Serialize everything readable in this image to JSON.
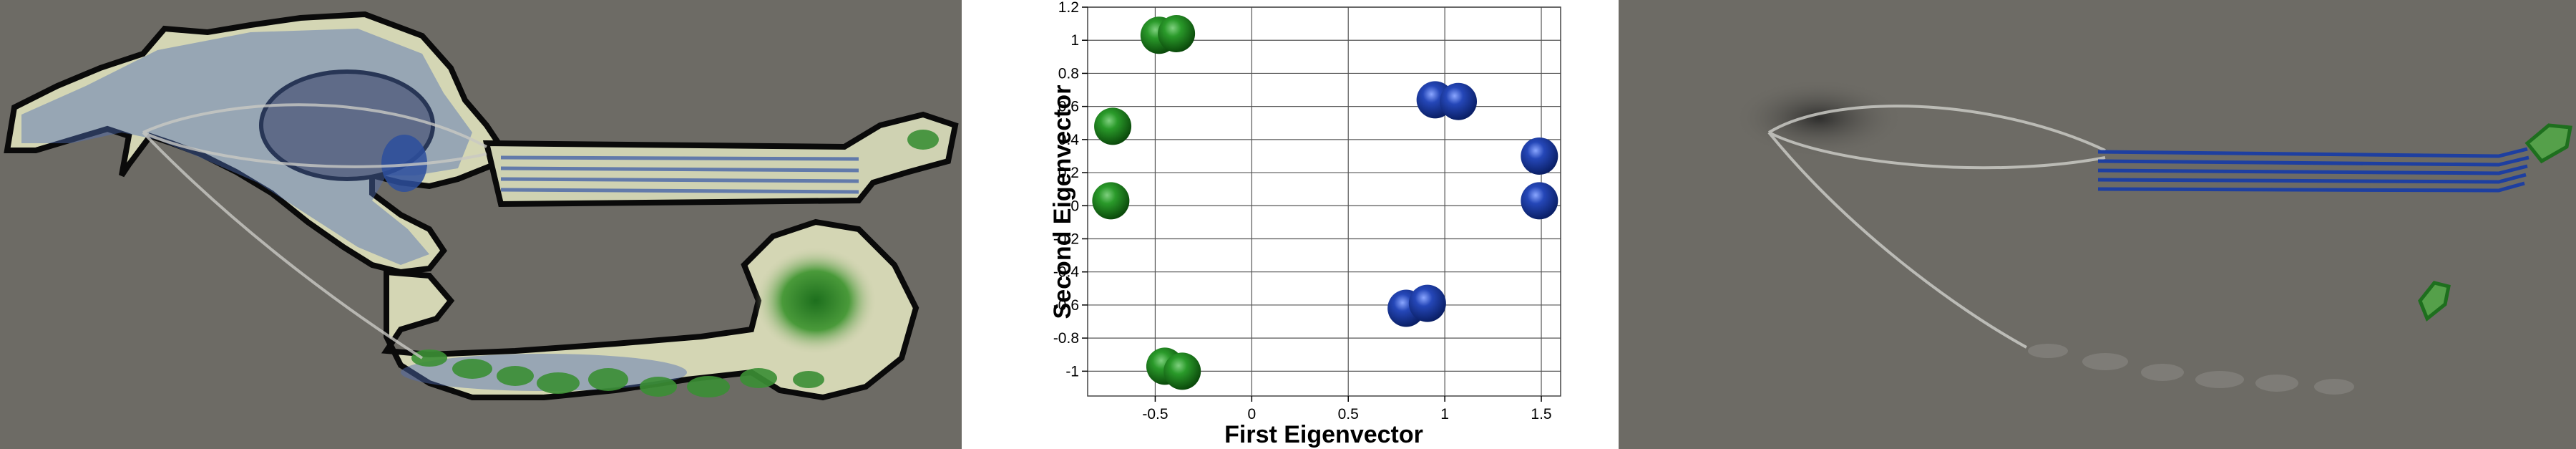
{
  "colors": {
    "viewport_bg": "#6d6b65",
    "region_fill": "#cfcfae",
    "region_outline": "#0a0a0a",
    "density_blue": "#3f5ea8",
    "density_green": "#2f8a2f",
    "node_green": "#1f8a1f",
    "node_blue": "#1f3f9f",
    "streamline": "#c9c9c4",
    "shadow": "#2a2a2a"
  },
  "chart_data": {
    "type": "scatter",
    "xlabel": "First Eigenvector",
    "ylabel": "Second Eigenvector",
    "xlim": [
      -0.85,
      1.6
    ],
    "ylim": [
      -1.15,
      1.2
    ],
    "xticks": [
      "-0.5",
      "0",
      "0.5",
      "1",
      "1.5"
    ],
    "xtick_values": [
      -0.5,
      0,
      0.5,
      1,
      1.5
    ],
    "yticks": [
      "1.2",
      "1",
      "0.8",
      "0.6",
      "0.4",
      "0.2",
      "0",
      "-0.2",
      "-0.4",
      "-0.6",
      "-0.8",
      "-1"
    ],
    "ytick_values": [
      1.2,
      1.0,
      0.8,
      0.6,
      0.4,
      0.2,
      0.0,
      -0.2,
      -0.4,
      -0.6,
      -0.8,
      -1.0
    ],
    "grid": true,
    "series": [
      {
        "color": "green",
        "points": [
          {
            "x": -0.48,
            "y": 1.03
          },
          {
            "x": -0.39,
            "y": 1.04
          },
          {
            "x": -0.72,
            "y": 0.48
          },
          {
            "x": -0.73,
            "y": 0.03
          },
          {
            "x": -0.45,
            "y": -0.97
          },
          {
            "x": -0.36,
            "y": -1.0
          }
        ]
      },
      {
        "color": "blue",
        "points": [
          {
            "x": 0.95,
            "y": 0.64
          },
          {
            "x": 1.07,
            "y": 0.63
          },
          {
            "x": 1.49,
            "y": 0.3
          },
          {
            "x": 1.49,
            "y": 0.03
          },
          {
            "x": 0.8,
            "y": -0.62
          },
          {
            "x": 0.91,
            "y": -0.59
          }
        ]
      }
    ]
  }
}
